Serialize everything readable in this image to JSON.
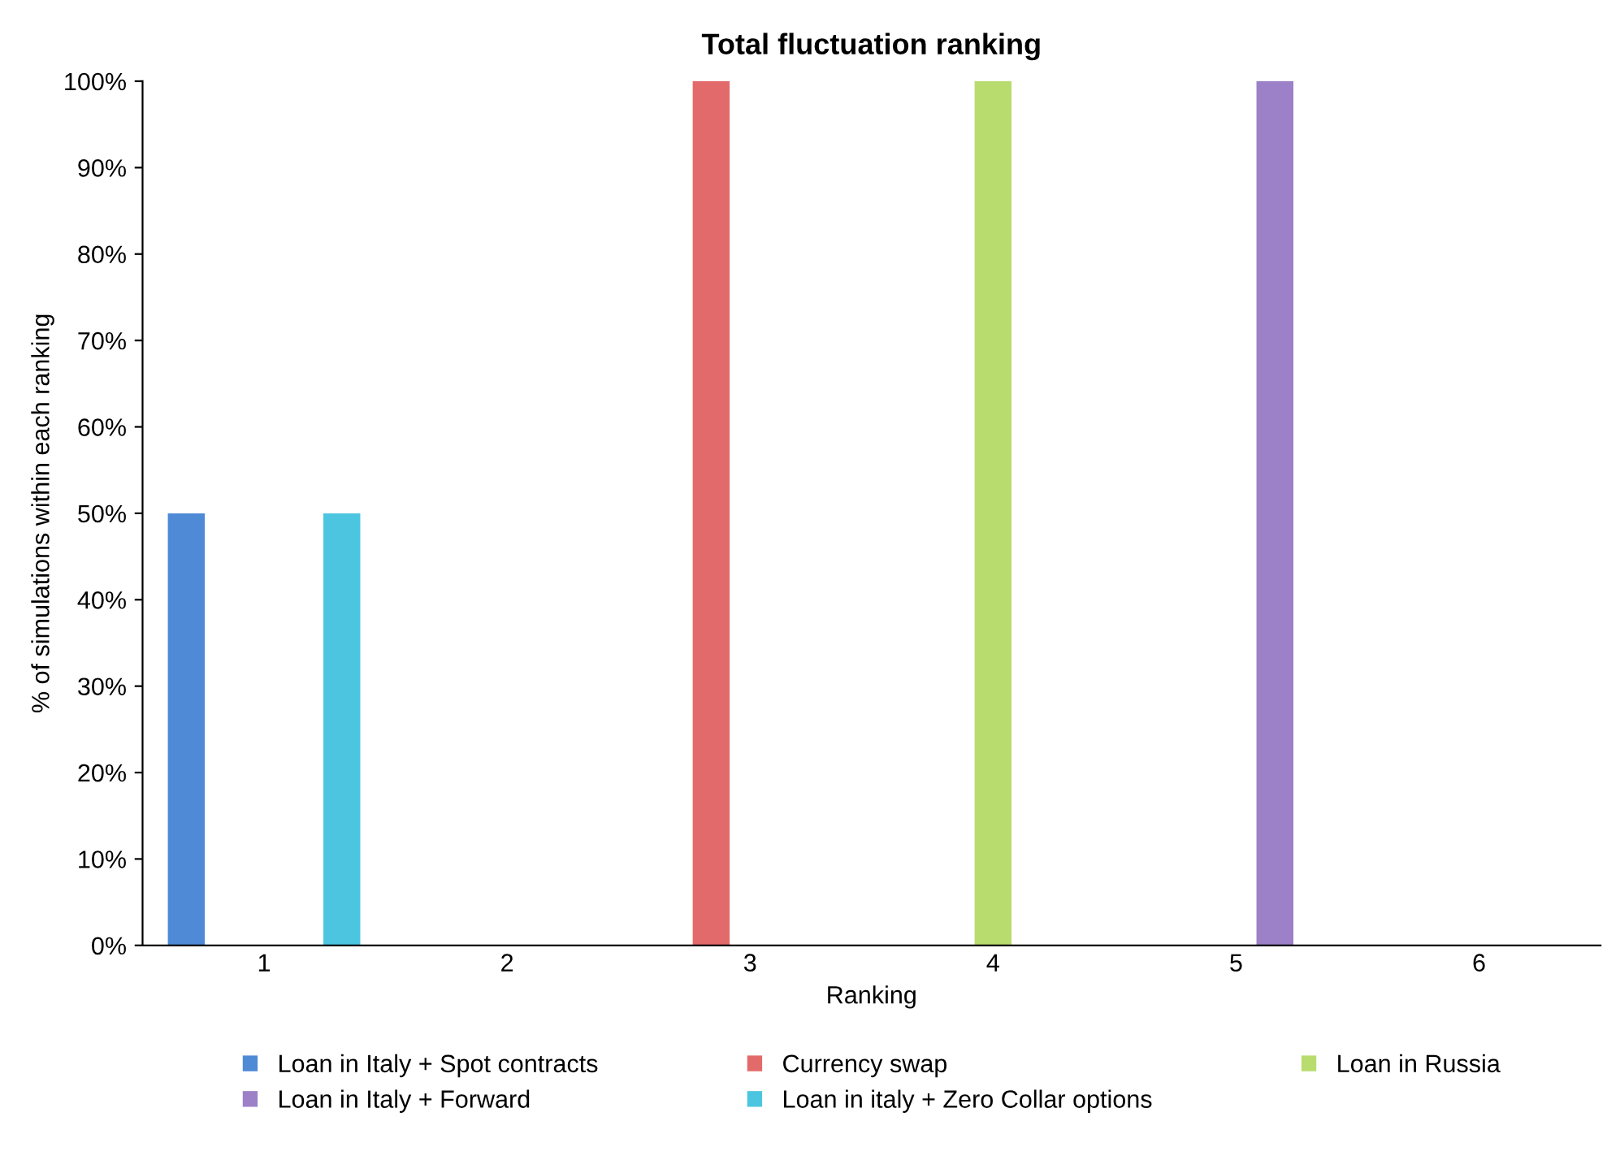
{
  "chart_data": {
    "type": "bar",
    "title": "Total fluctuation ranking",
    "xlabel": "Ranking",
    "ylabel": "% of simulations within each ranking",
    "categories": [
      "1",
      "2",
      "3",
      "4",
      "5",
      "6"
    ],
    "series": [
      {
        "name": "Loan in Italy + Spot contracts",
        "color": "#4f8ad6",
        "values": [
          50,
          0,
          0,
          0,
          0,
          0
        ]
      },
      {
        "name": "Currency swap",
        "color": "#e36a6a",
        "values": [
          0,
          0,
          100,
          0,
          0,
          0
        ]
      },
      {
        "name": "Loan in Russia",
        "color": "#b9dc6e",
        "values": [
          0,
          0,
          0,
          100,
          0,
          0
        ]
      },
      {
        "name": "Loan in Italy + Forward",
        "color": "#9c80c8",
        "values": [
          0,
          0,
          0,
          0,
          100,
          0
        ]
      },
      {
        "name": "Loan in italy + Zero Collar options",
        "color": "#4cc6e0",
        "values": [
          50,
          0,
          0,
          0,
          0,
          0
        ]
      }
    ],
    "ylim": [
      0,
      100
    ],
    "yticks": [
      {
        "value": 0,
        "label": "0%"
      },
      {
        "value": 10,
        "label": "10%"
      },
      {
        "value": 20,
        "label": "20%"
      },
      {
        "value": 30,
        "label": "30%"
      },
      {
        "value": 40,
        "label": "40%"
      },
      {
        "value": 50,
        "label": "50%"
      },
      {
        "value": 60,
        "label": "60%"
      },
      {
        "value": 70,
        "label": "70%"
      },
      {
        "value": 80,
        "label": "80%"
      },
      {
        "value": 90,
        "label": "90%"
      },
      {
        "value": 100,
        "label": "100%"
      }
    ],
    "grid": false,
    "legend": "bottom"
  }
}
